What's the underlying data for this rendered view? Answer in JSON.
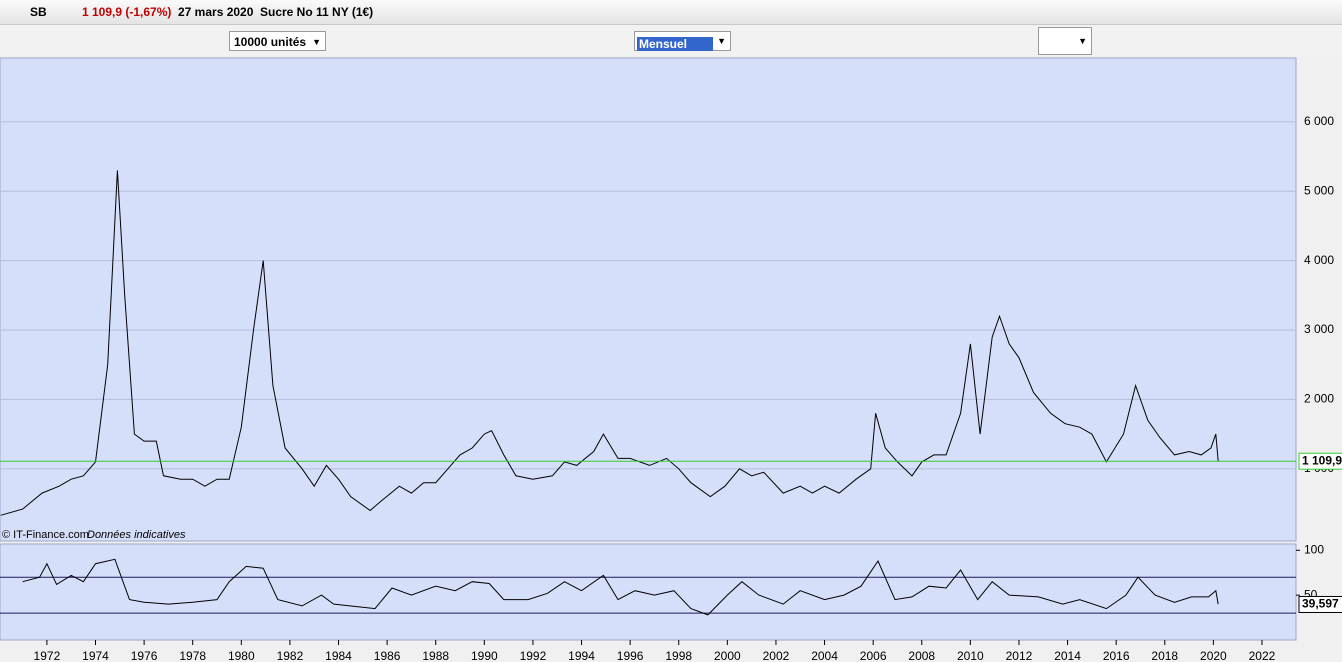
{
  "toolbar": {
    "symbol": "SB",
    "change": "1 109,9 (-1,67%)",
    "date": "27 mars 2020",
    "name": "Sucre No 11 NY (1€)"
  },
  "controls": {
    "units": "10000 unités",
    "period": "Mensuel"
  },
  "footer": {
    "source": "© IT-Finance.com",
    "note": "Données indicatives"
  },
  "chart_data": [
    {
      "type": "line",
      "color": "#000000",
      "grid": true,
      "background": "#d6dffa",
      "xlim": [
        1970.07,
        2023.4
      ],
      "ylim": [
        -40,
        6920
      ],
      "yticks": [
        {
          "value": 1000,
          "label": "1 000"
        },
        {
          "value": 2000,
          "label": "2 000"
        },
        {
          "value": 3000,
          "label": "3 000"
        },
        {
          "value": 4000,
          "label": "4 000"
        },
        {
          "value": 5000,
          "label": "5 000"
        },
        {
          "value": 6000,
          "label": "6 000"
        }
      ],
      "last_label": {
        "value": 1109.9,
        "label": "1 109,9",
        "color": "#33cc33"
      },
      "x": [
        1970.1,
        1971.0,
        1971.8,
        1972.5,
        1973.0,
        1973.5,
        1974.0,
        1974.5,
        1974.9,
        1975.2,
        1975.6,
        1976.0,
        1976.5,
        1976.8,
        1977.5,
        1978.0,
        1978.5,
        1979.0,
        1979.5,
        1980.0,
        1980.5,
        1980.9,
        1981.3,
        1981.8,
        1982.5,
        1983.0,
        1983.5,
        1984.0,
        1984.5,
        1985.3,
        1985.8,
        1986.5,
        1987.0,
        1987.5,
        1988.0,
        1988.5,
        1989.0,
        1989.5,
        1990.0,
        1990.3,
        1990.8,
        1991.3,
        1992.0,
        1992.8,
        1993.3,
        1993.8,
        1994.5,
        1994.9,
        1995.5,
        1996.0,
        1996.8,
        1997.5,
        1998.0,
        1998.5,
        1999.3,
        1999.9,
        2000.5,
        2001.0,
        2001.5,
        2002.3,
        2003.0,
        2003.5,
        2004.0,
        2004.6,
        2005.3,
        2005.9,
        2006.1,
        2006.5,
        2007.0,
        2007.6,
        2008.0,
        2008.5,
        2009.0,
        2009.6,
        2010.0,
        2010.4,
        2010.9,
        2011.2,
        2011.6,
        2012.0,
        2012.6,
        2013.3,
        2013.9,
        2014.5,
        2015.0,
        2015.6,
        2016.3,
        2016.8,
        2017.3,
        2017.8,
        2018.4,
        2019.0,
        2019.5,
        2019.9,
        2020.1,
        2020.2
      ],
      "values": [
        330,
        420,
        650,
        750,
        850,
        900,
        1100,
        2500,
        5300,
        3500,
        1500,
        1400,
        1400,
        900,
        850,
        850,
        750,
        850,
        850,
        1600,
        3000,
        4000,
        2200,
        1300,
        1000,
        750,
        1050,
        850,
        600,
        400,
        550,
        750,
        650,
        800,
        800,
        1000,
        1200,
        1300,
        1500,
        1550,
        1200,
        900,
        850,
        900,
        1100,
        1050,
        1250,
        1500,
        1150,
        1150,
        1050,
        1150,
        1000,
        800,
        600,
        750,
        1000,
        900,
        950,
        650,
        750,
        650,
        750,
        650,
        850,
        1000,
        1800,
        1300,
        1100,
        900,
        1100,
        1200,
        1200,
        1800,
        2800,
        1500,
        2900,
        3200,
        2800,
        2600,
        2100,
        1800,
        1650,
        1600,
        1500,
        1100,
        1500,
        2200,
        1700,
        1450,
        1200,
        1250,
        1200,
        1300,
        1500,
        1110
      ]
    },
    {
      "type": "line",
      "color": "#000000",
      "background": "#d6dffa",
      "xlim": [
        1970.07,
        2023.4
      ],
      "ylim": [
        0,
        107
      ],
      "xticks": [
        1972,
        1974,
        1976,
        1978,
        1980,
        1982,
        1984,
        1986,
        1988,
        1990,
        1992,
        1994,
        1996,
        1998,
        2000,
        2002,
        2004,
        2006,
        2008,
        2010,
        2012,
        2014,
        2016,
        2018,
        2020,
        2022
      ],
      "yticks": [
        50,
        100
      ],
      "levels": [
        30,
        70
      ],
      "last_label": {
        "value": 39.597,
        "label": "39,597",
        "color": "#000000"
      },
      "x": [
        1971.0,
        1971.7,
        1972.0,
        1972.4,
        1973.0,
        1973.5,
        1974.0,
        1974.8,
        1975.4,
        1976.0,
        1977.0,
        1978.0,
        1979.0,
        1979.5,
        1980.2,
        1980.9,
        1981.5,
        1982.5,
        1983.3,
        1983.8,
        1984.8,
        1985.5,
        1986.2,
        1987.0,
        1988.0,
        1988.8,
        1989.5,
        1990.2,
        1990.8,
        1991.8,
        1992.6,
        1993.3,
        1994.0,
        1994.9,
        1995.5,
        1996.2,
        1997.0,
        1997.8,
        1998.5,
        1999.2,
        2000.0,
        2000.6,
        2001.3,
        2002.3,
        2003.0,
        2004.0,
        2004.8,
        2005.5,
        2006.2,
        2006.9,
        2007.6,
        2008.3,
        2009.0,
        2009.6,
        2010.3,
        2010.9,
        2011.6,
        2012.8,
        2013.8,
        2014.5,
        2015.6,
        2016.4,
        2016.9,
        2017.6,
        2018.4,
        2019.1,
        2019.8,
        2020.1,
        2020.2
      ],
      "values": [
        65,
        70,
        85,
        62,
        72,
        65,
        85,
        90,
        45,
        42,
        40,
        42,
        45,
        65,
        82,
        80,
        45,
        38,
        50,
        40,
        37,
        35,
        58,
        50,
        60,
        55,
        65,
        63,
        45,
        45,
        52,
        65,
        55,
        72,
        45,
        55,
        50,
        55,
        35,
        28,
        50,
        65,
        50,
        40,
        55,
        45,
        50,
        60,
        88,
        45,
        48,
        60,
        58,
        78,
        45,
        65,
        50,
        48,
        40,
        45,
        35,
        50,
        70,
        50,
        42,
        48,
        48,
        55,
        40
      ]
    }
  ]
}
